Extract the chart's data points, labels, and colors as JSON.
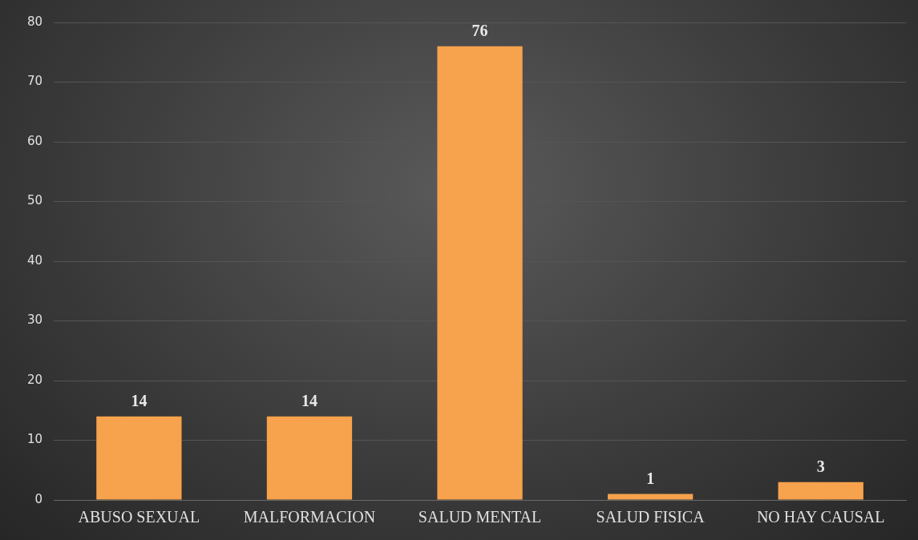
{
  "chart_data": {
    "type": "bar",
    "categories": [
      "ABUSO SEXUAL",
      "MALFORMACION",
      "SALUD MENTAL",
      "SALUD FISICA",
      "NO HAY CAUSAL"
    ],
    "values": [
      14,
      14,
      76,
      1,
      3
    ],
    "color": "#f7a24c",
    "ylim": [
      0,
      80
    ],
    "yticks": [
      0,
      10,
      20,
      30,
      40,
      50,
      60,
      70,
      80
    ],
    "grid": "y",
    "legend": false,
    "data_labels": true
  }
}
